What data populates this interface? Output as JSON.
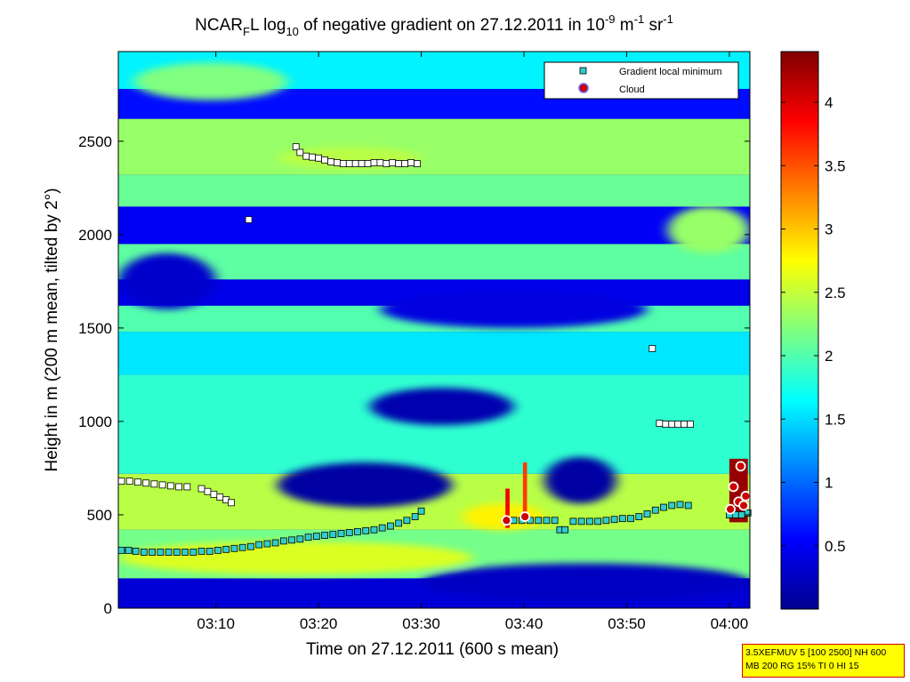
{
  "chart_data": {
    "type": "heatmap",
    "title": {
      "prefix": "NCAR",
      "sub1": "F",
      "mid1": "L log",
      "sub2": "10",
      "mid2": " of negative gradient on 27.12.2011 in 10",
      "sup1": "-9",
      "mid3": " m",
      "sup2": "-1",
      "mid4": " sr",
      "sup3": "-1"
    },
    "xlabel": "Time on 27.12.2011 (600 s mean)",
    "ylabel": "Height in m (200 m mean, tilted by 2°)",
    "xlim_minutes": [
      180.5,
      242
    ],
    "ylim": [
      0,
      2980
    ],
    "x_ticks": [
      {
        "label": "03:10",
        "minute": 190
      },
      {
        "label": "03:20",
        "minute": 200
      },
      {
        "label": "03:30",
        "minute": 210
      },
      {
        "label": "03:40",
        "minute": 220
      },
      {
        "label": "03:50",
        "minute": 230
      },
      {
        "label": "04:00",
        "minute": 240
      }
    ],
    "y_ticks": [
      0,
      500,
      1000,
      1500,
      2000,
      2500
    ],
    "colorbar": {
      "ticks": [
        "0.5",
        "1",
        "1.5",
        "2",
        "2.5",
        "3",
        "3.5",
        "4"
      ],
      "tick_values": [
        0.5,
        1,
        1.5,
        2,
        2.5,
        3,
        3.5,
        4
      ],
      "range": [
        0,
        4.4
      ],
      "colormap": "jet"
    },
    "legend": {
      "position": "top-right",
      "items": [
        {
          "label": "Gradient local minimum",
          "marker": "square",
          "color": "#33cccc"
        },
        {
          "label": "Cloud",
          "marker": "circle",
          "color": "#cc0000"
        }
      ]
    },
    "layers": [
      {
        "h": [
          0,
          160
        ],
        "v": 0.35
      },
      {
        "h": [
          160,
          420
        ],
        "v": 2.15
      },
      {
        "h": [
          420,
          720
        ],
        "v": 2.45
      },
      {
        "h": [
          720,
          1250
        ],
        "v": 1.85
      },
      {
        "h": [
          1250,
          1480
        ],
        "v": 1.55
      },
      {
        "h": [
          1480,
          1620
        ],
        "v": 2.0
      },
      {
        "h": [
          1620,
          1760
        ],
        "v": 0.45
      },
      {
        "h": [
          1760,
          1950
        ],
        "v": 2.05
      },
      {
        "h": [
          1950,
          2150
        ],
        "v": 0.5
      },
      {
        "h": [
          2150,
          2320
        ],
        "v": 2.1
      },
      {
        "h": [
          2320,
          2620
        ],
        "v": 2.3
      },
      {
        "h": [
          2620,
          2780
        ],
        "v": 0.6
      },
      {
        "h": [
          2780,
          2980
        ],
        "v": 1.6
      }
    ],
    "blobs": [
      {
        "t": [
          196,
          213
        ],
        "h": [
          540,
          780
        ],
        "v": 0.1
      },
      {
        "t": [
          222,
          229
        ],
        "h": [
          560,
          810
        ],
        "v": 0.1
      },
      {
        "t": [
          205,
          219
        ],
        "h": [
          980,
          1180
        ],
        "v": 0.15
      },
      {
        "t": [
          180.5,
          190
        ],
        "h": [
          1600,
          1900
        ],
        "v": 0.3
      },
      {
        "t": [
          206,
          232
        ],
        "h": [
          1500,
          1700
        ],
        "v": 0.4
      },
      {
        "t": [
          214,
          222
        ],
        "h": [
          420,
          560
        ],
        "v": 2.8
      },
      {
        "t": [
          210,
          242
        ],
        "h": [
          40,
          240
        ],
        "v": 0.25
      },
      {
        "t": [
          180.5,
          215
        ],
        "h": [
          180,
          360
        ],
        "v": 2.6
      },
      {
        "t": [
          196,
          210
        ],
        "h": [
          2350,
          2470
        ],
        "v": 2.45
      },
      {
        "t": [
          182,
          197
        ],
        "h": [
          2720,
          2920
        ],
        "v": 2.2
      },
      {
        "t": [
          234,
          242
        ],
        "h": [
          1900,
          2150
        ],
        "v": 2.3
      }
    ],
    "hot_strips": [
      {
        "t": [
          218.2,
          218.6
        ],
        "h": [
          430,
          640
        ],
        "v": 3.9
      },
      {
        "t": [
          219.9,
          220.3
        ],
        "h": [
          470,
          780
        ],
        "v": 3.6
      },
      {
        "t": [
          240,
          241.8
        ],
        "h": [
          460,
          800
        ],
        "v": 4.3
      }
    ],
    "gradient_minima": [
      {
        "t": 180.8,
        "h": 310
      },
      {
        "t": 181.5,
        "h": 310
      },
      {
        "t": 182.2,
        "h": 305
      },
      {
        "t": 183,
        "h": 300
      },
      {
        "t": 183.8,
        "h": 300
      },
      {
        "t": 184.6,
        "h": 300
      },
      {
        "t": 185.4,
        "h": 300
      },
      {
        "t": 186.2,
        "h": 300
      },
      {
        "t": 187,
        "h": 300
      },
      {
        "t": 187.8,
        "h": 300
      },
      {
        "t": 188.6,
        "h": 305
      },
      {
        "t": 189.4,
        "h": 305
      },
      {
        "t": 190.2,
        "h": 310
      },
      {
        "t": 191,
        "h": 315
      },
      {
        "t": 191.8,
        "h": 320
      },
      {
        "t": 192.6,
        "h": 325
      },
      {
        "t": 193.4,
        "h": 330
      },
      {
        "t": 194.2,
        "h": 340
      },
      {
        "t": 195,
        "h": 345
      },
      {
        "t": 195.8,
        "h": 350
      },
      {
        "t": 196.6,
        "h": 360
      },
      {
        "t": 197.4,
        "h": 365
      },
      {
        "t": 198.2,
        "h": 370
      },
      {
        "t": 199,
        "h": 380
      },
      {
        "t": 199.8,
        "h": 385
      },
      {
        "t": 200.6,
        "h": 390
      },
      {
        "t": 201.4,
        "h": 395
      },
      {
        "t": 202.2,
        "h": 400
      },
      {
        "t": 203,
        "h": 405
      },
      {
        "t": 203.8,
        "h": 410
      },
      {
        "t": 204.6,
        "h": 415
      },
      {
        "t": 205.4,
        "h": 420
      },
      {
        "t": 206.2,
        "h": 430
      },
      {
        "t": 207,
        "h": 440
      },
      {
        "t": 207.8,
        "h": 455
      },
      {
        "t": 208.6,
        "h": 470
      },
      {
        "t": 209.4,
        "h": 490
      },
      {
        "t": 210,
        "h": 520
      },
      {
        "t": 218.2,
        "h": 470
      },
      {
        "t": 219,
        "h": 470
      },
      {
        "t": 219.8,
        "h": 470
      },
      {
        "t": 220.6,
        "h": 470
      },
      {
        "t": 221.4,
        "h": 470
      },
      {
        "t": 222.2,
        "h": 470
      },
      {
        "t": 223,
        "h": 470
      },
      {
        "t": 223.5,
        "h": 420
      },
      {
        "t": 224,
        "h": 420
      },
      {
        "t": 224.8,
        "h": 465
      },
      {
        "t": 225.6,
        "h": 465
      },
      {
        "t": 226.4,
        "h": 465
      },
      {
        "t": 227.2,
        "h": 465
      },
      {
        "t": 228,
        "h": 470
      },
      {
        "t": 228.8,
        "h": 475
      },
      {
        "t": 229.6,
        "h": 480
      },
      {
        "t": 230.4,
        "h": 480
      },
      {
        "t": 231.2,
        "h": 490
      },
      {
        "t": 232,
        "h": 505
      },
      {
        "t": 232.8,
        "h": 525
      },
      {
        "t": 233.6,
        "h": 540
      },
      {
        "t": 234.4,
        "h": 550
      },
      {
        "t": 235.2,
        "h": 555
      },
      {
        "t": 236,
        "h": 550
      },
      {
        "t": 240,
        "h": 500
      },
      {
        "t": 240.6,
        "h": 500
      },
      {
        "t": 241.2,
        "h": 500
      },
      {
        "t": 241.8,
        "h": 510
      }
    ],
    "upper_minima": [
      {
        "t": 180.8,
        "h": 680
      },
      {
        "t": 181.6,
        "h": 680
      },
      {
        "t": 182.4,
        "h": 675
      },
      {
        "t": 183.2,
        "h": 670
      },
      {
        "t": 184,
        "h": 665
      },
      {
        "t": 184.8,
        "h": 660
      },
      {
        "t": 185.6,
        "h": 655
      },
      {
        "t": 186.4,
        "h": 650
      },
      {
        "t": 187.2,
        "h": 650
      },
      {
        "t": 188.6,
        "h": 640
      },
      {
        "t": 189.2,
        "h": 625
      },
      {
        "t": 189.8,
        "h": 610
      },
      {
        "t": 190.4,
        "h": 595
      },
      {
        "t": 191,
        "h": 580
      },
      {
        "t": 191.5,
        "h": 565
      },
      {
        "t": 193.2,
        "h": 2080
      },
      {
        "t": 197.8,
        "h": 2470
      },
      {
        "t": 198.2,
        "h": 2440
      },
      {
        "t": 198.8,
        "h": 2420
      },
      {
        "t": 199.4,
        "h": 2415
      },
      {
        "t": 200,
        "h": 2410
      },
      {
        "t": 200.6,
        "h": 2400
      },
      {
        "t": 201.2,
        "h": 2390
      },
      {
        "t": 201.8,
        "h": 2385
      },
      {
        "t": 202.4,
        "h": 2380
      },
      {
        "t": 203,
        "h": 2380
      },
      {
        "t": 203.6,
        "h": 2380
      },
      {
        "t": 204.2,
        "h": 2380
      },
      {
        "t": 204.8,
        "h": 2380
      },
      {
        "t": 205.4,
        "h": 2385
      },
      {
        "t": 206,
        "h": 2385
      },
      {
        "t": 206.6,
        "h": 2380
      },
      {
        "t": 207.2,
        "h": 2385
      },
      {
        "t": 207.8,
        "h": 2380
      },
      {
        "t": 208.4,
        "h": 2380
      },
      {
        "t": 209,
        "h": 2385
      },
      {
        "t": 209.6,
        "h": 2380
      },
      {
        "t": 232.5,
        "h": 1390
      },
      {
        "t": 233.2,
        "h": 990
      },
      {
        "t": 233.8,
        "h": 985
      },
      {
        "t": 234.4,
        "h": 985
      },
      {
        "t": 235,
        "h": 985
      },
      {
        "t": 235.6,
        "h": 985
      },
      {
        "t": 236.2,
        "h": 985
      }
    ],
    "clouds": [
      {
        "t": 218.3,
        "h": 470
      },
      {
        "t": 220.1,
        "h": 490
      },
      {
        "t": 240.1,
        "h": 530
      },
      {
        "t": 240.4,
        "h": 650
      },
      {
        "t": 240.9,
        "h": 570
      },
      {
        "t": 241.1,
        "h": 760
      },
      {
        "t": 241.4,
        "h": 550
      },
      {
        "t": 241.6,
        "h": 600
      }
    ]
  },
  "info_box": {
    "line1": "3.5XEFMUV 5 [100 2500] NH 600",
    "line2": "MB 200 RG 15% TI 0 HI 15"
  }
}
